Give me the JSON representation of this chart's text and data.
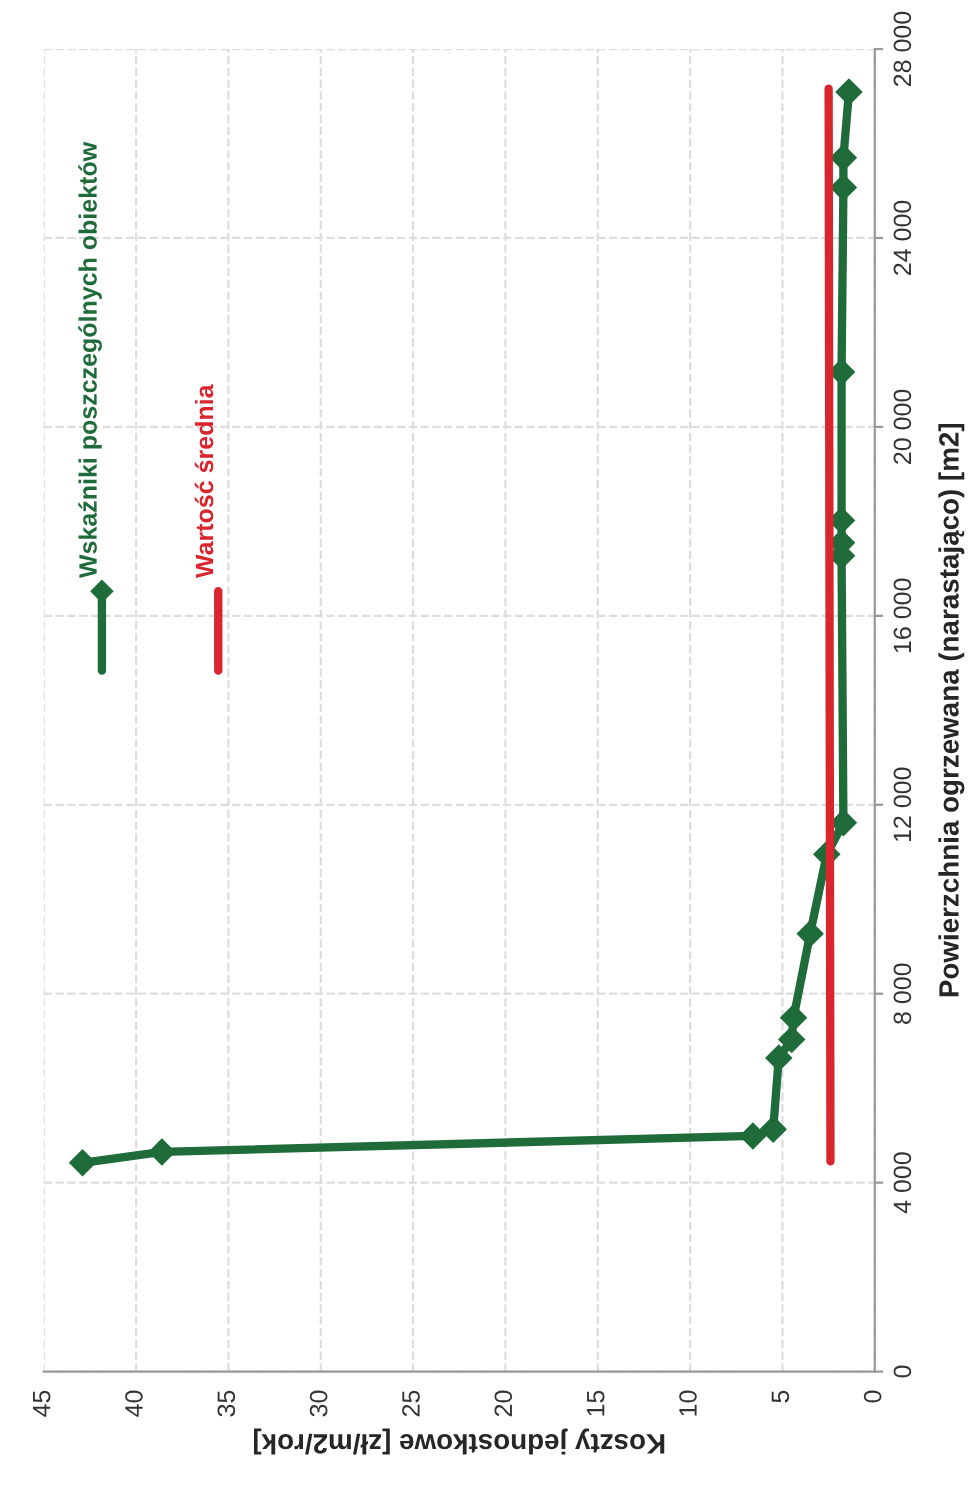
{
  "chart_data": {
    "type": "line",
    "orientation": "horizontal",
    "xlabel": "Koszty jednostkowe [zł/m2/rok]",
    "ylabel": "Powierzchnia ogrzewana (narastająco) [m2]",
    "xlim": [
      45,
      0
    ],
    "xticks": [
      45,
      40,
      35,
      30,
      25,
      20,
      15,
      10,
      5,
      0
    ],
    "ylim": [
      0,
      28000
    ],
    "yticks": [
      0,
      {
        "value": 4000,
        "label": "4 000"
      },
      {
        "value": 8000,
        "label": "8 000"
      },
      {
        "value": 12000,
        "label": "12 000"
      },
      {
        "value": 16000,
        "label": "16 000"
      },
      {
        "value": 20000,
        "label": "20 000"
      },
      {
        "value": 24000,
        "label": "24 000"
      },
      {
        "value": 28000,
        "label": "28 000"
      }
    ],
    "grid": true,
    "legend": "top left",
    "series": [
      {
        "name": "Wskaźniki poszczególnych obiektów",
        "color": "#1f6b3a",
        "marker": "diamond",
        "x": [
          4420,
          4650,
          4990,
          5130,
          6640,
          7030,
          7490,
          9270,
          10950,
          11620,
          17270,
          17550,
          18020,
          21160,
          25070,
          25700,
          27090
        ],
        "values": [
          42.9,
          38.6,
          6.6,
          5.5,
          5.2,
          4.5,
          4.4,
          3.5,
          2.6,
          1.7,
          1.8,
          1.8,
          1.8,
          1.8,
          1.7,
          1.7,
          1.4
        ]
      },
      {
        "name": "Wartość średnia",
        "color": "#d9262e",
        "marker": "none",
        "x": [
          4450,
          27160
        ],
        "values": [
          2.4,
          2.5
        ]
      }
    ]
  }
}
